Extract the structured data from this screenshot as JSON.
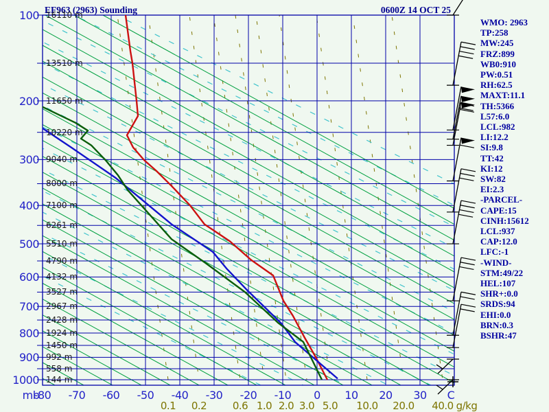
{
  "header": {
    "title": "EF963 (2963) Sounding",
    "date": "0600Z 14 OCT 25"
  },
  "stats": {
    "lines": [
      "WMO: 2963",
      "TP:258",
      "MW:245",
      "FRZ:899",
      "WB0:910",
      "PW:0.51",
      "RH:62.5",
      "MAXT:11.1",
      "TH:5366",
      "L57:6.0",
      "LCL:982",
      "LI:12.2",
      "SI:9.8",
      "TT:42",
      "KI:12",
      "SW:82",
      "EI:2.3",
      "-PARCEL-",
      "CAPE:15",
      "CINH:15612",
      "LCL:937",
      "CAP:12.0",
      "LFC:-1",
      "-WIND-",
      "STM:49/22",
      "HEL:107",
      "SHR+:0.0",
      "SRDS:94",
      "EHI:0.0",
      "BRN:0.3",
      "BSHR:47"
    ]
  },
  "chart_data": {
    "type": "line",
    "title": "EF963 (2963) Sounding",
    "subtitle": "0600Z 14 OCT 25",
    "x_axis": {
      "unit": "C",
      "left_label": "mb",
      "ticks": [
        -80,
        -70,
        -60,
        -50,
        -40,
        -30,
        -20,
        -10,
        0,
        10,
        20,
        30
      ],
      "range": [
        -80,
        40
      ]
    },
    "pressure_axis": {
      "unit": "mb",
      "labeled": [
        100,
        200,
        300,
        400,
        500,
        600,
        700,
        800,
        900,
        1000
      ],
      "levels": [
        100,
        150,
        200,
        250,
        300,
        350,
        400,
        450,
        500,
        550,
        600,
        650,
        700,
        750,
        800,
        850,
        900,
        950,
        1000
      ],
      "heights_m": [
        "16110 m",
        "13510 m",
        "11650 m",
        "10220 m",
        "9040 m",
        "8000 m",
        "7100 m",
        "6261 m",
        "5510 m",
        "4790 m",
        "4132 m",
        "3527 m",
        "2967 m",
        "2428 m",
        "1924 m",
        "1450 m",
        "992 m",
        "558 m",
        "144 m"
      ],
      "scale": "stuve_p^0.286"
    },
    "mixing_ratio": {
      "labels": [
        "0.1",
        "0.2",
        "0.6",
        "1.0",
        "2.0",
        "3.0",
        "5.0",
        "10.0",
        "20.0",
        "40.0"
      ],
      "unit": "g/kg"
    },
    "series": [
      {
        "name": "temperature",
        "color": "#cc1111",
        "points_p_t": [
          [
            100,
            -55.8
          ],
          [
            136,
            -54.4
          ],
          [
            150,
            -53.8
          ],
          [
            200,
            -52.6
          ],
          [
            223,
            -52.2
          ],
          [
            255,
            -55.4
          ],
          [
            277,
            -53.6
          ],
          [
            301,
            -50.4
          ],
          [
            323,
            -46.8
          ],
          [
            355,
            -42.4
          ],
          [
            400,
            -37.0
          ],
          [
            447,
            -32.8
          ],
          [
            493,
            -25.4
          ],
          [
            547,
            -19.2
          ],
          [
            595,
            -12.8
          ],
          [
            680,
            -9.8
          ],
          [
            735,
            -7.0
          ],
          [
            814,
            -3.8
          ],
          [
            899,
            -0.4
          ],
          [
            1000,
            3.0
          ]
        ]
      },
      {
        "name": "wetbulb",
        "color": "#1313cc",
        "points_p_t": [
          [
            243,
            -80.0
          ],
          [
            278,
            -71.4
          ],
          [
            337,
            -58.8
          ],
          [
            447,
            -42.4
          ],
          [
            523,
            -30.4
          ],
          [
            573,
            -26.4
          ],
          [
            643,
            -20.4
          ],
          [
            763,
            -10.4
          ],
          [
            836,
            -6.4
          ],
          [
            995,
            6.0
          ]
        ]
      },
      {
        "name": "dewpoint",
        "color": "#0b5e0b",
        "points_p_t": [
          [
            209,
            -80.0
          ],
          [
            234,
            -70.4
          ],
          [
            247,
            -66.8
          ],
          [
            261,
            -68.8
          ],
          [
            273,
            -65.8
          ],
          [
            303,
            -61.4
          ],
          [
            332,
            -58.0
          ],
          [
            364,
            -55.2
          ],
          [
            487,
            -42.4
          ],
          [
            557,
            -32.4
          ],
          [
            650,
            -21.0
          ],
          [
            760,
            -11.4
          ],
          [
            836,
            -4.0
          ],
          [
            1000,
            1.4
          ]
        ]
      }
    ],
    "wind_barbs": [
      {
        "p": 100,
        "pennants": 0,
        "barbs": 0,
        "dir": "up"
      },
      {
        "p": 178,
        "pennants": 0,
        "barbs": 4,
        "dir": "up"
      },
      {
        "p": 246,
        "pennants": 1,
        "barbs": 0,
        "dir": "up"
      },
      {
        "p": 262,
        "pennants": 1,
        "barbs": 2,
        "dir": "up"
      },
      {
        "p": 273,
        "pennants": 1,
        "barbs": 1,
        "dir": "up"
      },
      {
        "p": 344,
        "pennants": 1,
        "barbs": 1,
        "dir": "up"
      },
      {
        "p": 416,
        "pennants": 0,
        "barbs": 3,
        "dir": "up"
      },
      {
        "p": 500,
        "pennants": 0,
        "barbs": 4,
        "dir": "up"
      },
      {
        "p": 680,
        "pennants": 0,
        "barbs": 3,
        "dir": "up"
      },
      {
        "p": 809,
        "pennants": 0,
        "barbs": 2,
        "dir": "up"
      },
      {
        "p": 859,
        "pennants": 0,
        "barbs": 2,
        "dir": "up"
      },
      {
        "p": 908,
        "pennants": 0,
        "barbs": 1,
        "dir": "down"
      },
      {
        "p": 1000,
        "pennants": 0,
        "barbs": 1,
        "dir": "down"
      }
    ],
    "grid": {
      "isotherm_step_c": 10,
      "isobar_step_mb": 50,
      "legend": "none"
    },
    "colors": {
      "background": "#f0f8f0",
      "grid_blue": "#0000a8",
      "axis_label_blue": "#2323c8",
      "header_navy": "#000090",
      "dry_adiabat_green": "#00a040",
      "moist_adiabat_cyan": "#40c4cc",
      "mixing_ratio_olive": "#7d7400",
      "wind_barb_black": "#000000"
    }
  }
}
